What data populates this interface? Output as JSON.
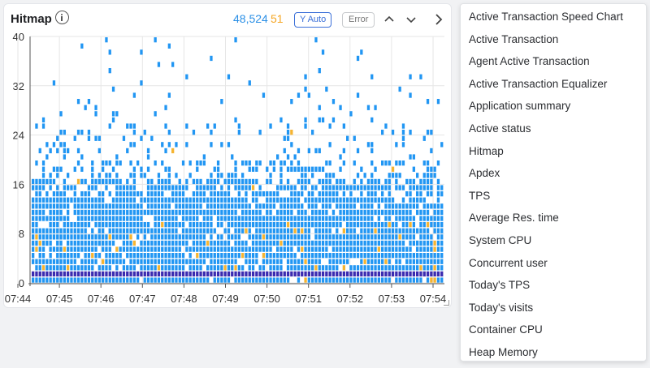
{
  "widget": {
    "title": "Hitmap",
    "info_icon": "info-icon",
    "count_total": "48,524",
    "count_error": "51",
    "y_auto_label": "Y Auto",
    "error_label": "Error",
    "collapse_icon": "chevron-up-icon",
    "expand_icon": "chevron-down-icon",
    "next_icon": "chevron-right-icon",
    "colors": {
      "normal": "#2196f3",
      "error": "#f5b431",
      "dense": "#3b2bb0",
      "grid": "#e6e6e6"
    }
  },
  "chart_data": {
    "type": "heatmap",
    "title": "Hitmap",
    "y_range": [
      0,
      40
    ],
    "y_ticks": [
      "0",
      "8",
      "16",
      "24",
      "32",
      "40"
    ],
    "x_ticks": [
      "07:44",
      "07:45",
      "07:46",
      "07:47",
      "07:48",
      "07:49",
      "07:50",
      "07:51",
      "07:52",
      "07:53",
      "07:54"
    ],
    "grid": true
  },
  "menu": {
    "items": [
      "Active Transaction Speed Chart",
      "Active Transaction",
      "Agent Active Transaction",
      "Active Transaction Equalizer",
      "Application summary",
      "Active status",
      "Hitmap",
      "Apdex",
      "TPS",
      "Average Res. time",
      "System CPU",
      "Concurrent user",
      "Today's TPS",
      "Today's visits",
      "Container CPU",
      "Heap Memory"
    ]
  }
}
